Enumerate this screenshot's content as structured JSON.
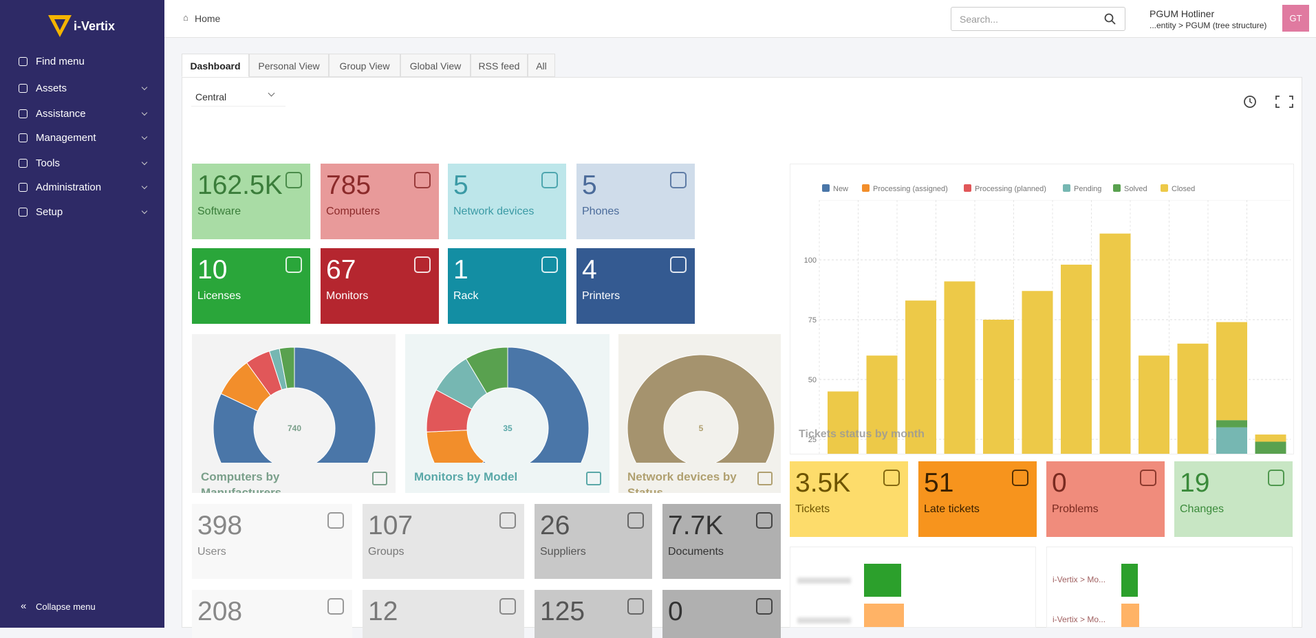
{
  "sidebar": {
    "brand": "i-Vertix",
    "menu": [
      "Find menu",
      "Assets",
      "Assistance",
      "Management",
      "Tools",
      "Administration",
      "Setup"
    ],
    "collapse": "Collapse menu"
  },
  "header": {
    "breadcrumb": "Home",
    "search_placeholder": "Search...",
    "user": "PGUM Hotliner",
    "entity": "...entity > PGUM (tree structure)",
    "avatar": "GT"
  },
  "tabs": [
    "Dashboard",
    "Personal View",
    "Group View",
    "Global View",
    "RSS feed",
    "All"
  ],
  "dashboard_select": "Central",
  "cards": [
    {
      "value": "162.5K",
      "label": "Software"
    },
    {
      "value": "785",
      "label": "Computers"
    },
    {
      "value": "5",
      "label": "Network devices"
    },
    {
      "value": "5",
      "label": "Phones"
    },
    {
      "value": "10",
      "label": "Licenses"
    },
    {
      "value": "67",
      "label": "Monitors"
    },
    {
      "value": "1",
      "label": "Rack"
    },
    {
      "value": "4",
      "label": "Printers"
    }
  ],
  "donuts": [
    {
      "title": "Computers by Manufacturers",
      "total": 740,
      "values": [
        607,
        59,
        37,
        15,
        22
      ],
      "colors": [
        "#4a76a8",
        "#f28e2b",
        "#e15759",
        "#76b7b2",
        "#59a14f"
      ]
    },
    {
      "title": "Monitors by Model",
      "total": 35,
      "values": [
        21,
        5,
        3,
        3,
        3
      ],
      "colors": [
        "#4a76a8",
        "#f28e2b",
        "#e15759",
        "#76b7b2",
        "#59a14f"
      ]
    },
    {
      "title": "Network devices by Status",
      "total": 5,
      "values": [
        5
      ],
      "colors": [
        "#a5936e"
      ]
    }
  ],
  "chart_data": {
    "type": "bar",
    "title": "Tickets status by month",
    "categories": [
      null,
      null,
      null,
      null,
      null,
      null,
      null,
      null,
      null,
      null,
      null,
      null
    ],
    "series": [
      {
        "name": "New",
        "color": "#4a76a8",
        "values": [
          0,
          0,
          0,
          0,
          0,
          0,
          0,
          0,
          0,
          0,
          0,
          0
        ]
      },
      {
        "name": "Processing (assigned)",
        "color": "#f28e2b",
        "values": [
          0,
          0,
          0,
          0,
          0,
          0,
          0,
          0,
          0,
          0,
          0,
          0
        ]
      },
      {
        "name": "Processing (planned)",
        "color": "#e15759",
        "values": [
          0,
          0,
          0,
          0,
          0,
          0,
          0,
          0,
          0,
          0,
          0,
          0
        ]
      },
      {
        "name": "Pending",
        "color": "#76b7b2",
        "values": [
          0,
          0,
          0,
          0,
          0,
          0,
          0,
          0,
          0,
          0,
          30,
          0
        ]
      },
      {
        "name": "Solved",
        "color": "#59a14f",
        "values": [
          0,
          0,
          0,
          0,
          0,
          0,
          0,
          0,
          0,
          0,
          3,
          24
        ]
      },
      {
        "name": "Closed",
        "color": "#edc948",
        "values": [
          45,
          60,
          83,
          91,
          75,
          87,
          98,
          111,
          60,
          65,
          41,
          3
        ]
      }
    ],
    "ylim": [
      0,
      125
    ],
    "yticks": [
      25,
      50,
      75,
      100
    ],
    "grid": true
  },
  "stat_cards": [
    {
      "value": "3.5K",
      "label": "Tickets"
    },
    {
      "value": "51",
      "label": "Late tickets"
    },
    {
      "value": "0",
      "label": "Problems"
    },
    {
      "value": "19",
      "label": "Changes"
    }
  ],
  "bottom_cards": [
    {
      "value": "398",
      "label": "Users"
    },
    {
      "value": "107",
      "label": "Groups"
    },
    {
      "value": "26",
      "label": "Suppliers"
    },
    {
      "value": "7.7K",
      "label": "Documents"
    }
  ],
  "bottom_cards_2": [
    "208",
    "12",
    "125",
    "0"
  ],
  "entity_list": [
    "i-Vertix > Mo...",
    "i-Vertix > Mo..."
  ]
}
